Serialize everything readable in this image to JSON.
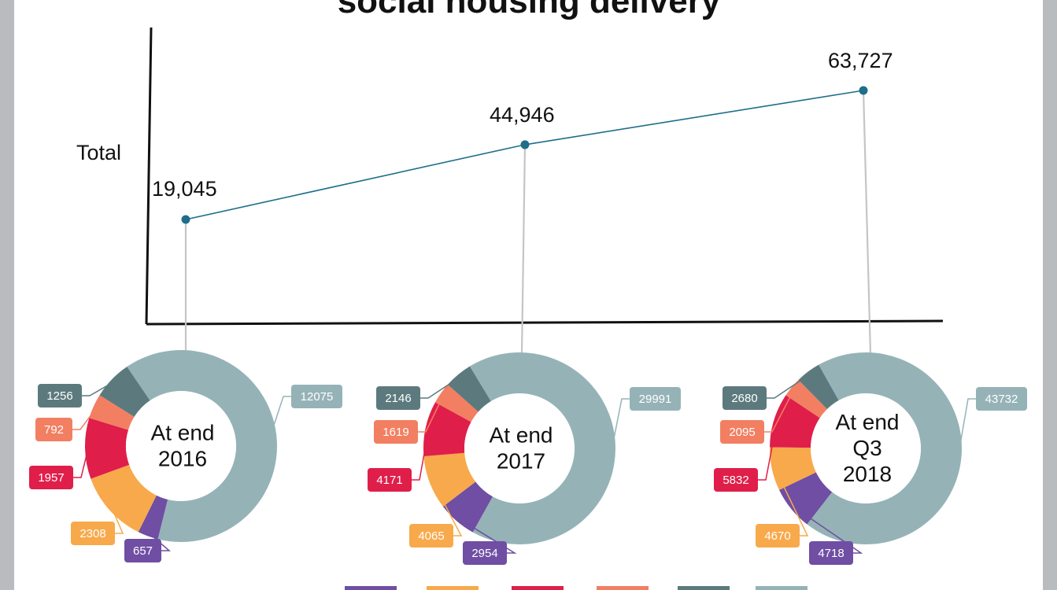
{
  "title": "social housing delivery",
  "chart_data": [
    {
      "type": "line",
      "ylabel": "Total",
      "x": [
        "At end 2016",
        "At end 2017",
        "At end Q3 2018"
      ],
      "series": [
        {
          "values": [
            19045,
            44946,
            63727
          ],
          "labels": [
            "19,045",
            "44,946",
            "63,727"
          ],
          "color": "#1f6e8a"
        }
      ],
      "grid": false
    },
    {
      "type": "pie",
      "donut": true,
      "colors": [
        "#6f4ea3",
        "#f8a94b",
        "#e01e4a",
        "#f27f62",
        "#5c7a7e",
        "#95b3b7"
      ],
      "charts": [
        {
          "center_lines": [
            "At end",
            "2016"
          ],
          "values": [
            657,
            2308,
            1957,
            792,
            1256,
            12075
          ]
        },
        {
          "center_lines": [
            "At end",
            "2017"
          ],
          "values": [
            2954,
            4065,
            4171,
            1619,
            2146,
            29991
          ]
        },
        {
          "center_lines": [
            "At end",
            "Q3",
            "2018"
          ],
          "values": [
            4718,
            4670,
            5832,
            2095,
            2680,
            43732
          ]
        }
      ]
    }
  ]
}
